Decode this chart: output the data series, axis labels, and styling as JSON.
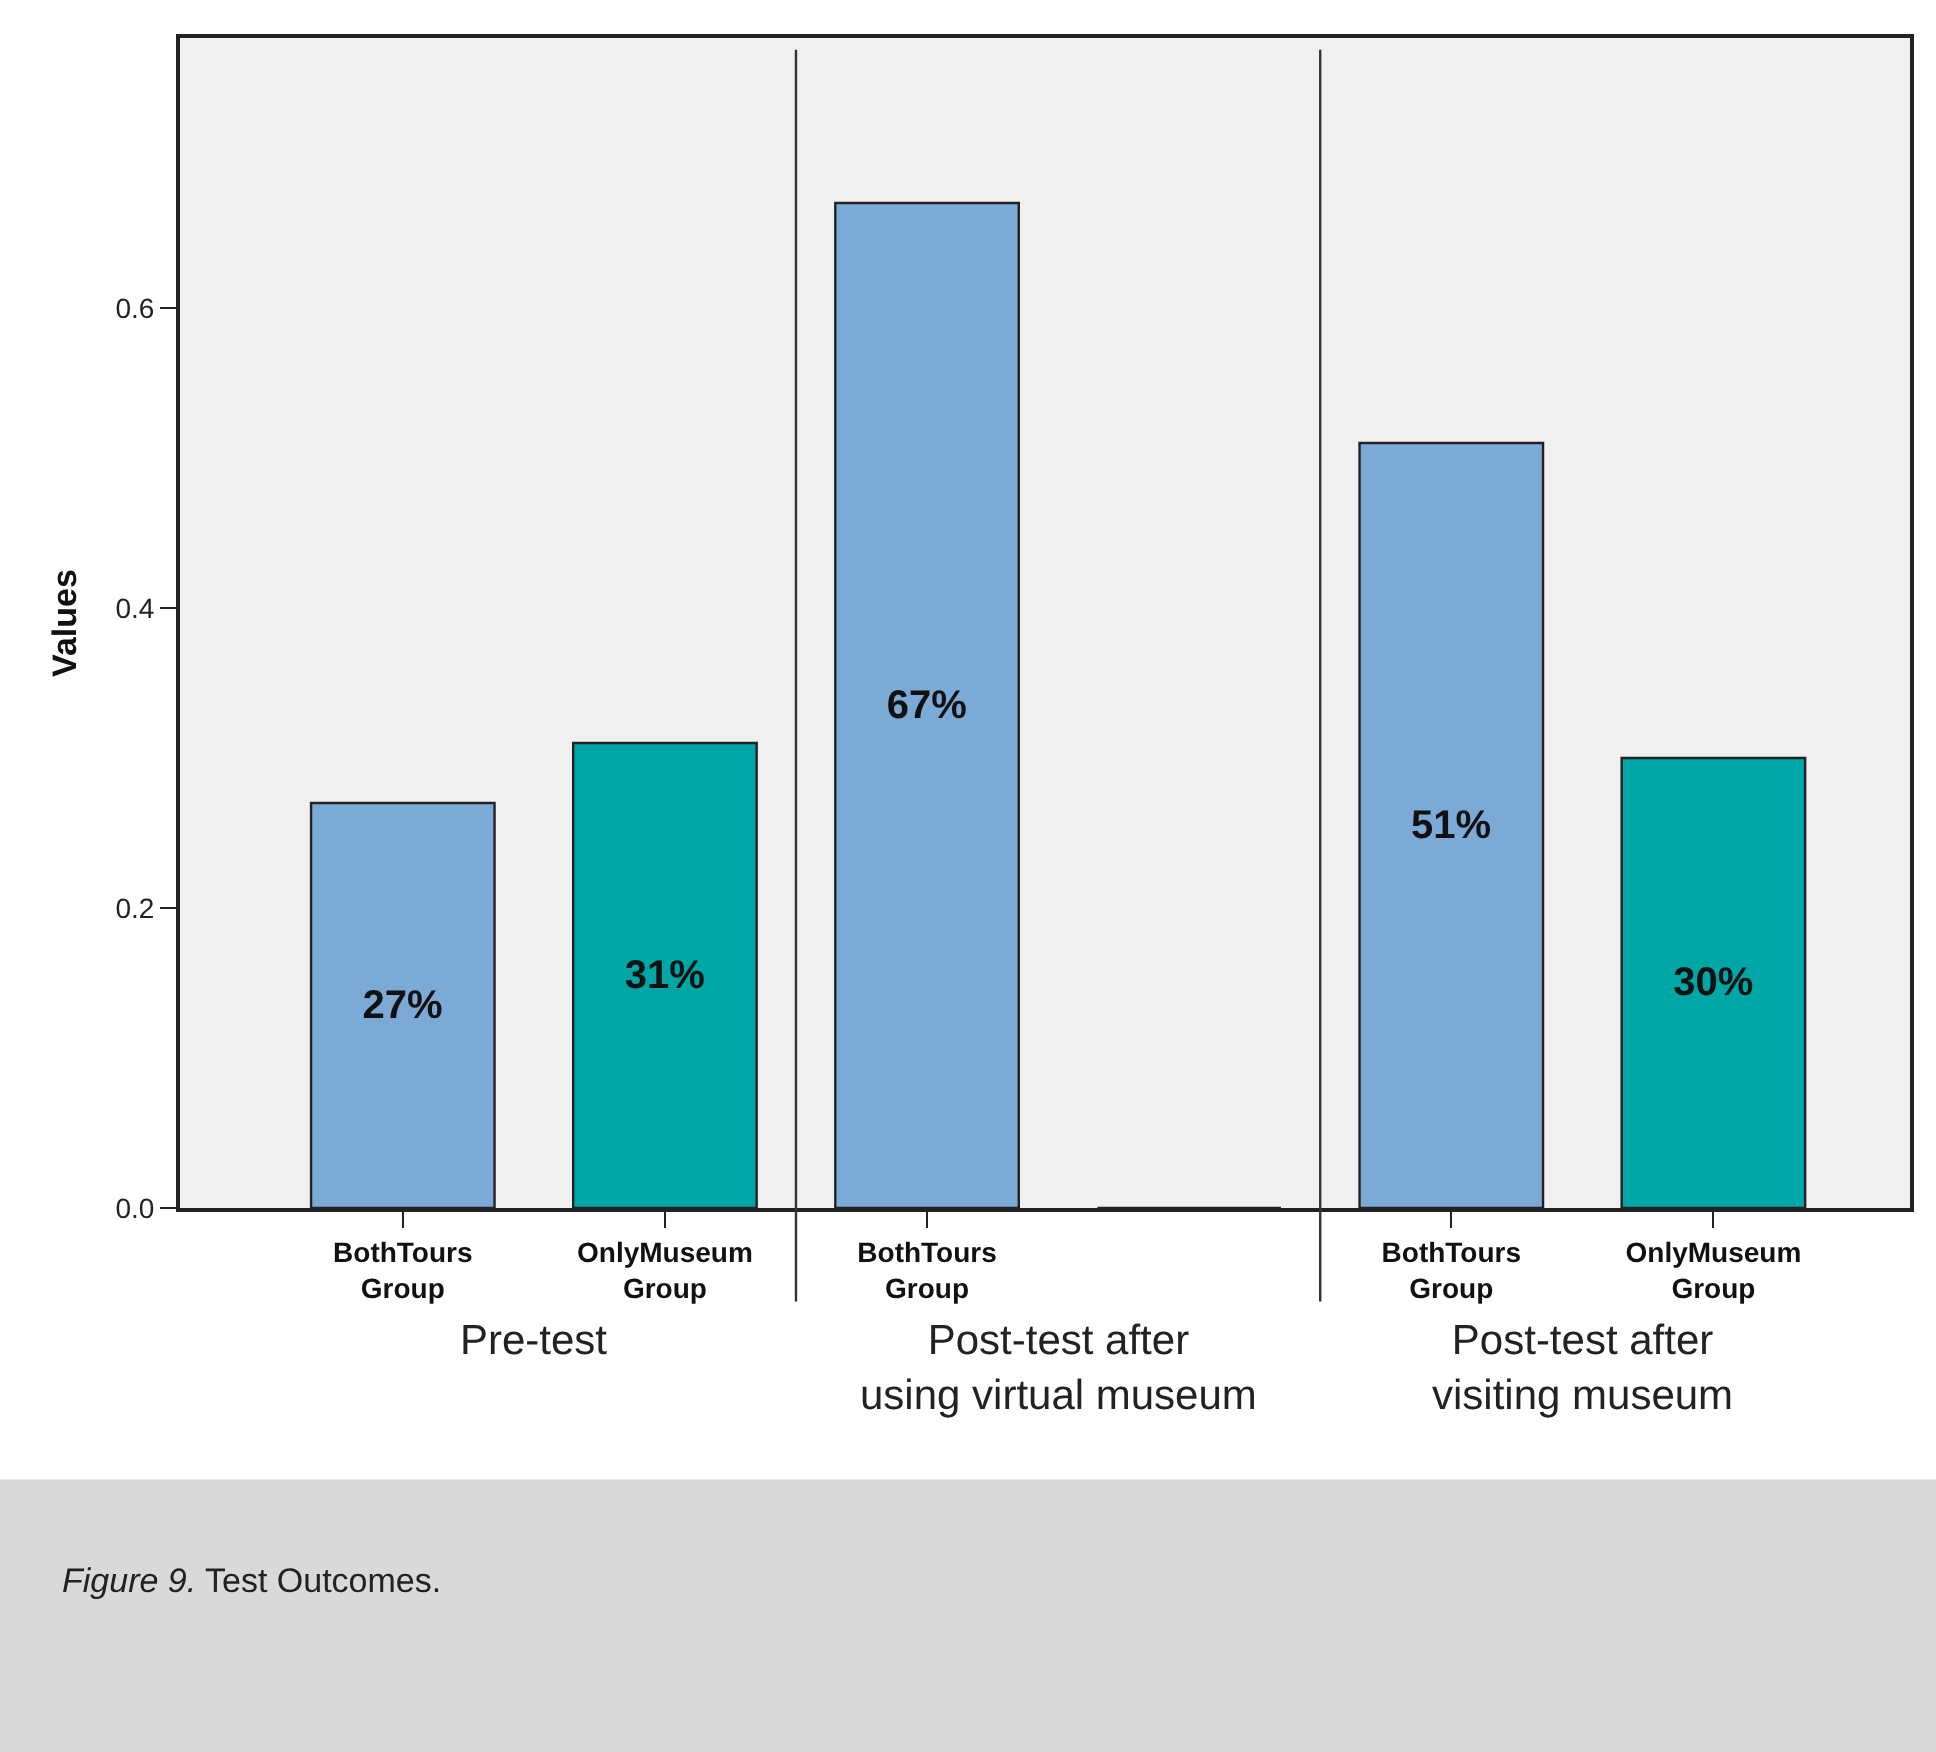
{
  "chart_data": {
    "type": "bar",
    "ylabel": "Values",
    "categories": [
      "BothTours Group",
      "OnlyMuseum Group",
      "BothTours Group",
      null,
      "BothTours Group",
      "OnlyMuseum Group"
    ],
    "values": [
      0.27,
      0.31,
      0.67,
      0,
      0.51,
      0.3
    ],
    "colors": [
      "#7baad6",
      "#00a6a6",
      "#7baad6",
      "#222222",
      "#7baad6",
      "#00a6a6"
    ],
    "value_labels": [
      "27%",
      "31%",
      "67%",
      null,
      "51%",
      "30%"
    ],
    "ylim": [
      0,
      0.78
    ],
    "yticks": [
      {
        "value": 0,
        "label": "0.0"
      },
      0.2,
      0.4,
      0.6
    ],
    "grid": false,
    "legend": false,
    "annotations": [
      "Pre-test",
      "Post-test after using virtual museum",
      "Post-test after visiting museum",
      "Figure 9. Test Outcomes."
    ]
  }
}
